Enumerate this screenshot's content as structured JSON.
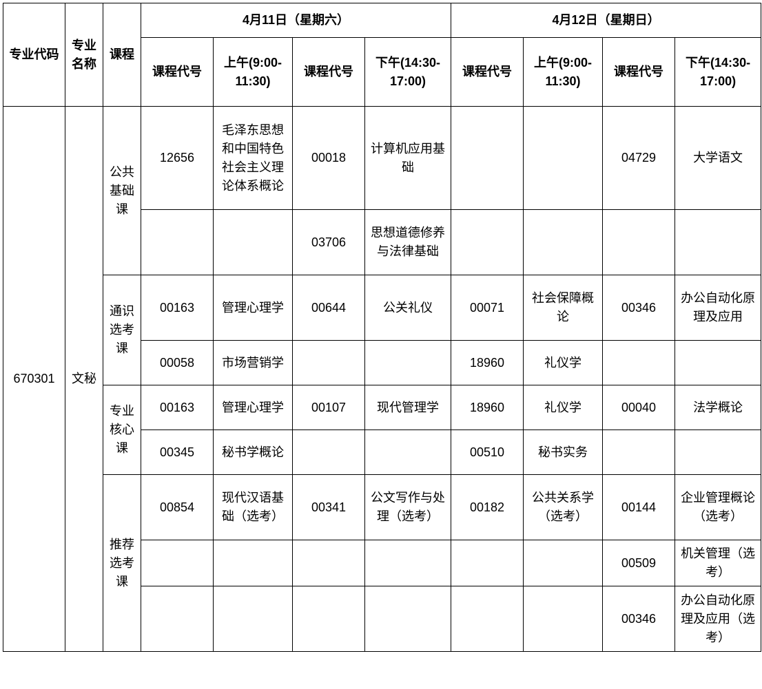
{
  "headers": {
    "major_code": "专业代码",
    "major_name": "专业名称",
    "course_type": "课程",
    "day1": "4月11日（星期六）",
    "day2": "4月12日（星期日）",
    "course_code": "课程代号",
    "am": "上午(9:00-11:30)",
    "pm": "下午(14:30-17:00)"
  },
  "major": {
    "code": "670301",
    "name": "文秘"
  },
  "course_types": {
    "public": "公共基础课",
    "general": "通识选考课",
    "core": "专业核心课",
    "recommended": "推荐选考课"
  },
  "rows": {
    "r1": {
      "d1_am_code": "12656",
      "d1_am_name": "毛泽东思想和中国特色社会主义理论体系概论",
      "d1_pm_code": "00018",
      "d1_pm_name": "计算机应用基础",
      "d2_am_code": "",
      "d2_am_name": "",
      "d2_pm_code": "04729",
      "d2_pm_name": "大学语文"
    },
    "r2": {
      "d1_am_code": "",
      "d1_am_name": "",
      "d1_pm_code": "03706",
      "d1_pm_name": "思想道德修养与法律基础",
      "d2_am_code": "",
      "d2_am_name": "",
      "d2_pm_code": "",
      "d2_pm_name": ""
    },
    "r3": {
      "d1_am_code": "00163",
      "d1_am_name": "管理心理学",
      "d1_pm_code": "00644",
      "d1_pm_name": "公关礼仪",
      "d2_am_code": "00071",
      "d2_am_name": "社会保障概论",
      "d2_pm_code": "00346",
      "d2_pm_name": "办公自动化原理及应用"
    },
    "r4": {
      "d1_am_code": "00058",
      "d1_am_name": "市场营销学",
      "d1_pm_code": "",
      "d1_pm_name": "",
      "d2_am_code": "18960",
      "d2_am_name": "礼仪学",
      "d2_pm_code": "",
      "d2_pm_name": ""
    },
    "r5": {
      "d1_am_code": "00163",
      "d1_am_name": "管理心理学",
      "d1_pm_code": "00107",
      "d1_pm_name": "现代管理学",
      "d2_am_code": "18960",
      "d2_am_name": "礼仪学",
      "d2_pm_code": "00040",
      "d2_pm_name": "法学概论"
    },
    "r6": {
      "d1_am_code": "00345",
      "d1_am_name": "秘书学概论",
      "d1_pm_code": "",
      "d1_pm_name": "",
      "d2_am_code": "00510",
      "d2_am_name": "秘书实务",
      "d2_pm_code": "",
      "d2_pm_name": ""
    },
    "r7": {
      "d1_am_code": "00854",
      "d1_am_name": "现代汉语基础（选考）",
      "d1_pm_code": "00341",
      "d1_pm_name": "公文写作与处理（选考）",
      "d2_am_code": "00182",
      "d2_am_name": "公共关系学（选考）",
      "d2_pm_code": "00144",
      "d2_pm_name": "企业管理概论（选考）"
    },
    "r8": {
      "d1_am_code": "",
      "d1_am_name": "",
      "d1_pm_code": "",
      "d1_pm_name": "",
      "d2_am_code": "",
      "d2_am_name": "",
      "d2_pm_code": "00509",
      "d2_pm_name": "机关管理（选考）"
    },
    "r9": {
      "d1_am_code": "",
      "d1_am_name": "",
      "d1_pm_code": "",
      "d1_pm_name": "",
      "d2_am_code": "",
      "d2_am_name": "",
      "d2_pm_code": "00346",
      "d2_pm_name": "办公自动化原理及应用（选考）"
    }
  },
  "style": {
    "border_color": "#000000",
    "background_color": "#ffffff",
    "text_color": "#000000",
    "font_size_pt": 14
  }
}
